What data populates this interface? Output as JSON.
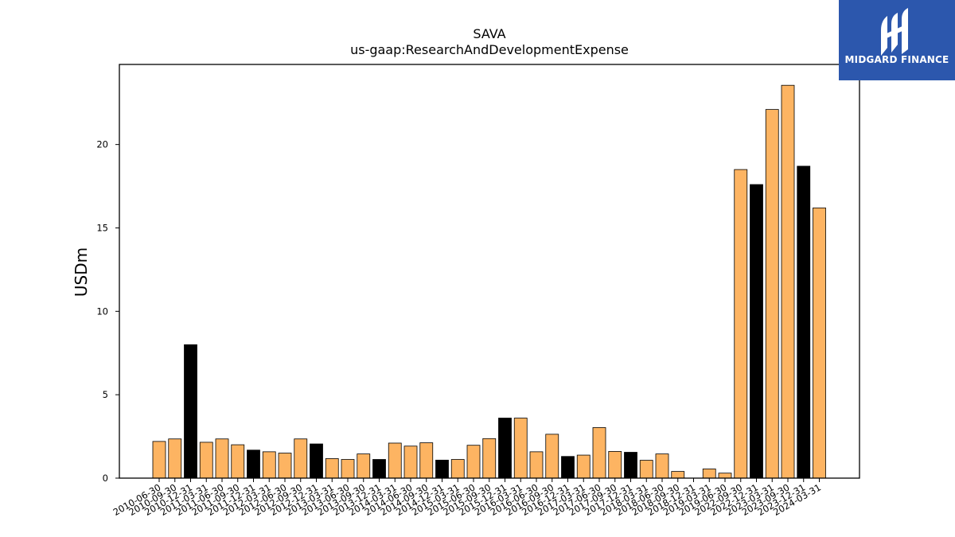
{
  "brand": {
    "name": "MIDGARD FINANCE",
    "icon": "midgard-logo-icon",
    "background": "#2c57ad"
  },
  "colors": {
    "default_bar": "#fdb462",
    "highlight_bar": "#000000",
    "edge": "#000000"
  },
  "chart_data": {
    "type": "bar",
    "title": "SAVA",
    "subtitle": "us-gaap:ResearchAndDevelopmentExpense",
    "xlabel": "",
    "ylabel": "USDm",
    "ylim": [
      0,
      24.8
    ],
    "yticks": [
      0,
      5,
      10,
      15,
      20
    ],
    "grid": false,
    "categories": [
      "2010-06-30",
      "2010-09-30",
      "2010-12-31",
      "2011-03-31",
      "2011-06-30",
      "2011-09-30",
      "2011-12-31",
      "2012-03-31",
      "2012-06-30",
      "2012-09-30",
      "2012-12-31",
      "2013-03-31",
      "2013-06-30",
      "2013-09-30",
      "2013-12-31",
      "2014-03-31",
      "2014-06-30",
      "2014-09-30",
      "2014-12-31",
      "2015-03-31",
      "2015-06-30",
      "2015-09-30",
      "2015-12-31",
      "2016-03-31",
      "2016-06-30",
      "2016-09-30",
      "2016-12-31",
      "2017-03-31",
      "2017-06-30",
      "2017-09-30",
      "2017-12-31",
      "2018-03-31",
      "2018-06-30",
      "2018-09-30",
      "2018-12-31",
      "2019-03-31",
      "2019-06-30",
      "2022-09-30",
      "2022-12-31",
      "2023-03-31",
      "2023-09-30",
      "2023-12-31",
      "2024-03-31"
    ],
    "values": [
      2.2,
      2.35,
      8.0,
      2.15,
      2.35,
      2.0,
      1.68,
      1.58,
      1.5,
      2.35,
      2.05,
      1.17,
      1.12,
      1.45,
      1.12,
      2.1,
      1.92,
      2.12,
      1.08,
      1.12,
      1.97,
      2.37,
      3.6,
      3.6,
      1.58,
      2.63,
      1.3,
      1.38,
      3.03,
      1.6,
      1.55,
      1.07,
      1.45,
      0.4,
      0.0,
      0.55,
      0.3,
      18.5,
      17.6,
      22.1,
      23.55,
      18.7,
      16.2
    ],
    "highlight": [
      false,
      false,
      true,
      false,
      false,
      false,
      true,
      false,
      false,
      false,
      true,
      false,
      false,
      false,
      true,
      false,
      false,
      false,
      true,
      false,
      false,
      false,
      true,
      false,
      false,
      false,
      true,
      false,
      false,
      false,
      true,
      false,
      false,
      false,
      true,
      false,
      false,
      false,
      true,
      false,
      false,
      true,
      false
    ]
  }
}
